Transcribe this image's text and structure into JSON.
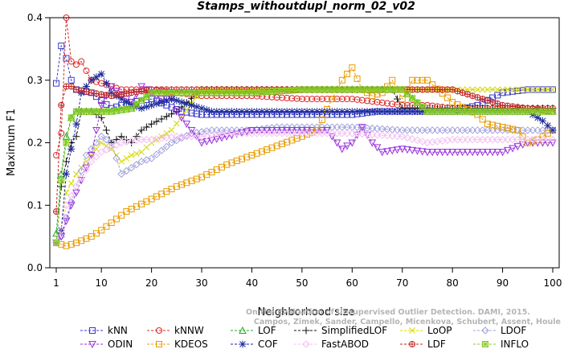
{
  "chart_data": {
    "type": "line",
    "title": "Stamps_withoutdupl_norm_02_v02",
    "xlabel": "Neighborhood size",
    "ylabel": "Maximum F1",
    "xlim": [
      1,
      100
    ],
    "ylim": [
      0,
      0.4
    ],
    "xticks": [
      "1",
      "10",
      "20",
      "30",
      "40",
      "50",
      "60",
      "70",
      "80",
      "90",
      "100"
    ],
    "yticks": [
      "0.0",
      "0.1",
      "0.2",
      "0.3",
      "0.4"
    ],
    "grid": false,
    "legend_position": "bottom",
    "credit_lines": [
      "Campos, Zimek, Sander, Campello, Micenkova, Schubert, Assent, Houle",
      "On the Evaluation of Unsupervised Outlier Detection. DAMI, 2015."
    ],
    "series": [
      {
        "name": "kNN",
        "color": "#3a3acc",
        "marker": "square",
        "dash": "3,2",
        "points": [
          [
            1,
            0.295
          ],
          [
            2,
            0.355
          ],
          [
            3,
            0.335
          ],
          [
            4,
            0.3
          ],
          [
            5,
            0.285
          ],
          [
            8,
            0.28
          ],
          [
            12,
            0.255
          ],
          [
            16,
            0.265
          ],
          [
            20,
            0.27
          ],
          [
            26,
            0.25
          ],
          [
            30,
            0.245
          ],
          [
            40,
            0.245
          ],
          [
            50,
            0.245
          ],
          [
            55,
            0.245
          ],
          [
            60,
            0.245
          ],
          [
            65,
            0.25
          ],
          [
            70,
            0.25
          ],
          [
            75,
            0.25
          ],
          [
            80,
            0.25
          ],
          [
            85,
            0.26
          ],
          [
            90,
            0.28
          ],
          [
            95,
            0.285
          ],
          [
            100,
            0.285
          ]
        ]
      },
      {
        "name": "kNNW",
        "color": "#dd2a2a",
        "marker": "circle",
        "dash": "3,2",
        "points": [
          [
            1,
            0.18
          ],
          [
            2,
            0.215
          ],
          [
            3,
            0.4
          ],
          [
            4,
            0.33
          ],
          [
            5,
            0.325
          ],
          [
            6,
            0.33
          ],
          [
            8,
            0.3
          ],
          [
            10,
            0.295
          ],
          [
            14,
            0.285
          ],
          [
            20,
            0.285
          ],
          [
            30,
            0.275
          ],
          [
            40,
            0.275
          ],
          [
            50,
            0.27
          ],
          [
            55,
            0.27
          ],
          [
            60,
            0.27
          ],
          [
            65,
            0.265
          ],
          [
            70,
            0.26
          ],
          [
            75,
            0.26
          ],
          [
            80,
            0.255
          ],
          [
            85,
            0.255
          ],
          [
            90,
            0.255
          ],
          [
            95,
            0.255
          ],
          [
            100,
            0.255
          ]
        ]
      },
      {
        "name": "LOF",
        "color": "#22aa22",
        "marker": "triangle",
        "dash": "3,2",
        "points": [
          [
            1,
            0.055
          ],
          [
            2,
            0.15
          ],
          [
            3,
            0.21
          ],
          [
            4,
            0.24
          ],
          [
            5,
            0.25
          ],
          [
            8,
            0.25
          ],
          [
            12,
            0.25
          ],
          [
            16,
            0.255
          ],
          [
            20,
            0.28
          ],
          [
            30,
            0.28
          ],
          [
            40,
            0.28
          ],
          [
            50,
            0.285
          ],
          [
            60,
            0.285
          ],
          [
            70,
            0.285
          ],
          [
            75,
            0.25
          ],
          [
            80,
            0.25
          ],
          [
            90,
            0.25
          ],
          [
            100,
            0.25
          ]
        ]
      },
      {
        "name": "SimplifiedLOF",
        "color": "#111111",
        "marker": "plus",
        "dash": "3,2",
        "points": [
          [
            1,
            0.04
          ],
          [
            2,
            0.13
          ],
          [
            3,
            0.17
          ],
          [
            4,
            0.2
          ],
          [
            5,
            0.21
          ],
          [
            6,
            0.25
          ],
          [
            8,
            0.25
          ],
          [
            10,
            0.24
          ],
          [
            12,
            0.2
          ],
          [
            14,
            0.21
          ],
          [
            16,
            0.2
          ],
          [
            18,
            0.22
          ],
          [
            20,
            0.23
          ],
          [
            25,
            0.25
          ],
          [
            30,
            0.285
          ],
          [
            40,
            0.285
          ],
          [
            50,
            0.285
          ],
          [
            60,
            0.285
          ],
          [
            65,
            0.285
          ],
          [
            68,
            0.285
          ],
          [
            70,
            0.255
          ],
          [
            80,
            0.255
          ],
          [
            90,
            0.255
          ],
          [
            100,
            0.255
          ]
        ]
      },
      {
        "name": "LoOP",
        "color": "#d8d800",
        "marker": "cross",
        "dash": "3,2",
        "points": [
          [
            1,
            0.04
          ],
          [
            2,
            0.06
          ],
          [
            3,
            0.12
          ],
          [
            5,
            0.15
          ],
          [
            8,
            0.18
          ],
          [
            10,
            0.2
          ],
          [
            12,
            0.19
          ],
          [
            14,
            0.17
          ],
          [
            16,
            0.18
          ],
          [
            18,
            0.185
          ],
          [
            20,
            0.2
          ],
          [
            24,
            0.22
          ],
          [
            30,
            0.285
          ],
          [
            40,
            0.285
          ],
          [
            50,
            0.285
          ],
          [
            60,
            0.285
          ],
          [
            70,
            0.285
          ],
          [
            80,
            0.285
          ],
          [
            90,
            0.285
          ],
          [
            100,
            0.285
          ]
        ]
      },
      {
        "name": "LDOF",
        "color": "#a0a0dd",
        "marker": "diamond",
        "dash": "3,2",
        "points": [
          [
            1,
            0.04
          ],
          [
            2,
            0.05
          ],
          [
            3,
            0.08
          ],
          [
            5,
            0.13
          ],
          [
            7,
            0.18
          ],
          [
            9,
            0.2
          ],
          [
            10,
            0.21
          ],
          [
            12,
            0.2
          ],
          [
            14,
            0.15
          ],
          [
            16,
            0.16
          ],
          [
            18,
            0.17
          ],
          [
            20,
            0.175
          ],
          [
            24,
            0.2
          ],
          [
            28,
            0.215
          ],
          [
            32,
            0.22
          ],
          [
            40,
            0.22
          ],
          [
            45,
            0.225
          ],
          [
            50,
            0.225
          ],
          [
            60,
            0.225
          ],
          [
            70,
            0.22
          ],
          [
            80,
            0.22
          ],
          [
            90,
            0.22
          ],
          [
            100,
            0.22
          ]
        ]
      },
      {
        "name": "ODIN",
        "color": "#9933dd",
        "marker": "triangle-down",
        "dash": "3,2",
        "points": [
          [
            1,
            0.04
          ],
          [
            2,
            0.05
          ],
          [
            4,
            0.1
          ],
          [
            6,
            0.14
          ],
          [
            8,
            0.18
          ],
          [
            10,
            0.26
          ],
          [
            12,
            0.29
          ],
          [
            14,
            0.275
          ],
          [
            16,
            0.265
          ],
          [
            18,
            0.29
          ],
          [
            20,
            0.28
          ],
          [
            22,
            0.27
          ],
          [
            24,
            0.27
          ],
          [
            25,
            0.25
          ],
          [
            26,
            0.24
          ],
          [
            28,
            0.22
          ],
          [
            30,
            0.2
          ],
          [
            35,
            0.21
          ],
          [
            40,
            0.22
          ],
          [
            45,
            0.22
          ],
          [
            50,
            0.22
          ],
          [
            55,
            0.22
          ],
          [
            58,
            0.19
          ],
          [
            60,
            0.2
          ],
          [
            62,
            0.225
          ],
          [
            64,
            0.2
          ],
          [
            66,
            0.185
          ],
          [
            70,
            0.19
          ],
          [
            75,
            0.185
          ],
          [
            80,
            0.185
          ],
          [
            85,
            0.185
          ],
          [
            90,
            0.185
          ],
          [
            95,
            0.2
          ],
          [
            100,
            0.2
          ]
        ]
      },
      {
        "name": "KDEOS",
        "color": "#e89b00",
        "marker": "square",
        "dash": "3,2",
        "points": [
          [
            1,
            0.04
          ],
          [
            3,
            0.035
          ],
          [
            5,
            0.04
          ],
          [
            8,
            0.05
          ],
          [
            10,
            0.06
          ],
          [
            15,
            0.09
          ],
          [
            20,
            0.11
          ],
          [
            25,
            0.13
          ],
          [
            30,
            0.145
          ],
          [
            35,
            0.165
          ],
          [
            40,
            0.18
          ],
          [
            45,
            0.195
          ],
          [
            50,
            0.21
          ],
          [
            53,
            0.22
          ],
          [
            56,
            0.27
          ],
          [
            58,
            0.3
          ],
          [
            60,
            0.32
          ],
          [
            62,
            0.285
          ],
          [
            64,
            0.275
          ],
          [
            66,
            0.28
          ],
          [
            68,
            0.3
          ],
          [
            70,
            0.27
          ],
          [
            72,
            0.3
          ],
          [
            75,
            0.3
          ],
          [
            80,
            0.265
          ],
          [
            85,
            0.245
          ],
          [
            87,
            0.23
          ],
          [
            90,
            0.225
          ],
          [
            93,
            0.22
          ],
          [
            95,
            0.2
          ],
          [
            97,
            0.205
          ],
          [
            100,
            0.22
          ]
        ]
      },
      {
        "name": "COF",
        "color": "#1a2a99",
        "marker": "asterisk",
        "dash": "3,2",
        "points": [
          [
            1,
            0.04
          ],
          [
            2,
            0.06
          ],
          [
            3,
            0.15
          ],
          [
            4,
            0.19
          ],
          [
            5,
            0.23
          ],
          [
            6,
            0.28
          ],
          [
            8,
            0.3
          ],
          [
            10,
            0.31
          ],
          [
            12,
            0.28
          ],
          [
            14,
            0.27
          ],
          [
            16,
            0.26
          ],
          [
            18,
            0.255
          ],
          [
            20,
            0.26
          ],
          [
            24,
            0.27
          ],
          [
            28,
            0.26
          ],
          [
            32,
            0.25
          ],
          [
            36,
            0.25
          ],
          [
            40,
            0.25
          ],
          [
            45,
            0.25
          ],
          [
            50,
            0.25
          ],
          [
            60,
            0.25
          ],
          [
            70,
            0.25
          ],
          [
            80,
            0.25
          ],
          [
            90,
            0.25
          ],
          [
            95,
            0.25
          ],
          [
            98,
            0.235
          ],
          [
            100,
            0.22
          ]
        ]
      },
      {
        "name": "FastABOD",
        "color": "#f2c0f2",
        "marker": "diamond",
        "dash": "3,2",
        "points": [
          [
            1,
            0.04
          ],
          [
            2,
            0.06
          ],
          [
            3,
            0.1
          ],
          [
            5,
            0.13
          ],
          [
            8,
            0.17
          ],
          [
            10,
            0.185
          ],
          [
            14,
            0.2
          ],
          [
            18,
            0.205
          ],
          [
            20,
            0.205
          ],
          [
            25,
            0.21
          ],
          [
            30,
            0.21
          ],
          [
            35,
            0.215
          ],
          [
            40,
            0.215
          ],
          [
            50,
            0.215
          ],
          [
            60,
            0.215
          ],
          [
            70,
            0.21
          ],
          [
            75,
            0.2
          ],
          [
            80,
            0.205
          ],
          [
            90,
            0.205
          ],
          [
            100,
            0.205
          ]
        ]
      },
      {
        "name": "LDF",
        "color": "#c02525",
        "marker": "circle-plus",
        "dash": "3,2",
        "points": [
          [
            1,
            0.09
          ],
          [
            2,
            0.26
          ],
          [
            3,
            0.29
          ],
          [
            4,
            0.29
          ],
          [
            5,
            0.285
          ],
          [
            8,
            0.28
          ],
          [
            12,
            0.275
          ],
          [
            16,
            0.28
          ],
          [
            20,
            0.285
          ],
          [
            30,
            0.285
          ],
          [
            40,
            0.285
          ],
          [
            50,
            0.285
          ],
          [
            60,
            0.285
          ],
          [
            70,
            0.285
          ],
          [
            80,
            0.285
          ],
          [
            90,
            0.26
          ],
          [
            100,
            0.25
          ]
        ]
      },
      {
        "name": "INFLO",
        "color": "#88cc22",
        "marker": "star-box",
        "dash": "3,2",
        "points": [
          [
            1,
            0.04
          ],
          [
            2,
            0.14
          ],
          [
            3,
            0.2
          ],
          [
            4,
            0.24
          ],
          [
            5,
            0.25
          ],
          [
            8,
            0.25
          ],
          [
            12,
            0.25
          ],
          [
            16,
            0.255
          ],
          [
            20,
            0.28
          ],
          [
            30,
            0.28
          ],
          [
            40,
            0.28
          ],
          [
            50,
            0.285
          ],
          [
            60,
            0.285
          ],
          [
            70,
            0.285
          ],
          [
            75,
            0.25
          ],
          [
            80,
            0.25
          ],
          [
            90,
            0.25
          ],
          [
            100,
            0.25
          ]
        ]
      }
    ]
  }
}
